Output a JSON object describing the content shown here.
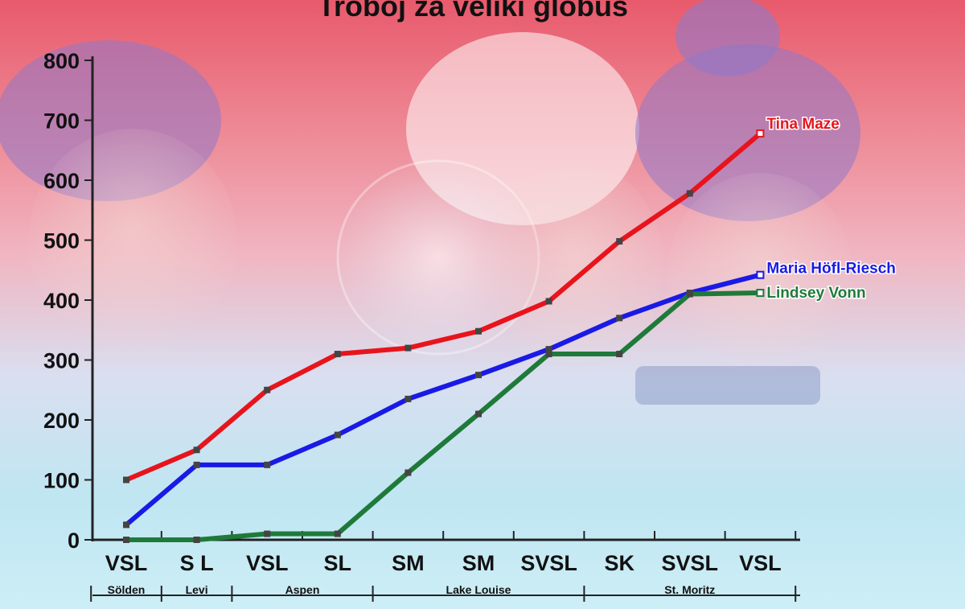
{
  "chart_data": {
    "type": "line",
    "title": "Troboj za veliki globus",
    "ylim": [
      0,
      800
    ],
    "yticks": [
      "0",
      "100",
      "200",
      "300",
      "400",
      "500",
      "600",
      "700",
      "800"
    ],
    "categories": [
      "VSL",
      "S L",
      "VSL",
      "SL",
      "SM",
      "SM",
      "SVSL",
      "SK",
      "SVSL",
      "VSL"
    ],
    "venues": [
      {
        "name": "Sölden",
        "start": 0,
        "end": 0
      },
      {
        "name": "Levi",
        "start": 1,
        "end": 1
      },
      {
        "name": "Aspen",
        "start": 2,
        "end": 3
      },
      {
        "name": "Lake Louise",
        "start": 4,
        "end": 6
      },
      {
        "name": "St. Moritz",
        "start": 7,
        "end": 9
      }
    ],
    "series": [
      {
        "name": "Tina Maze",
        "color": "#e8141c",
        "values": [
          100,
          150,
          250,
          310,
          320,
          348,
          398,
          498,
          578,
          678
        ]
      },
      {
        "name": "Maria Höfl-Riesch",
        "color": "#1a1ae6",
        "values": [
          25,
          125,
          125,
          175,
          235,
          275,
          318,
          370,
          412,
          442
        ]
      },
      {
        "name": "Lindsey Vonn",
        "color": "#1f7a3a",
        "values": [
          0,
          0,
          10,
          10,
          112,
          210,
          310,
          310,
          410,
          412
        ]
      }
    ],
    "grid": false,
    "legend": "line-end labels"
  }
}
